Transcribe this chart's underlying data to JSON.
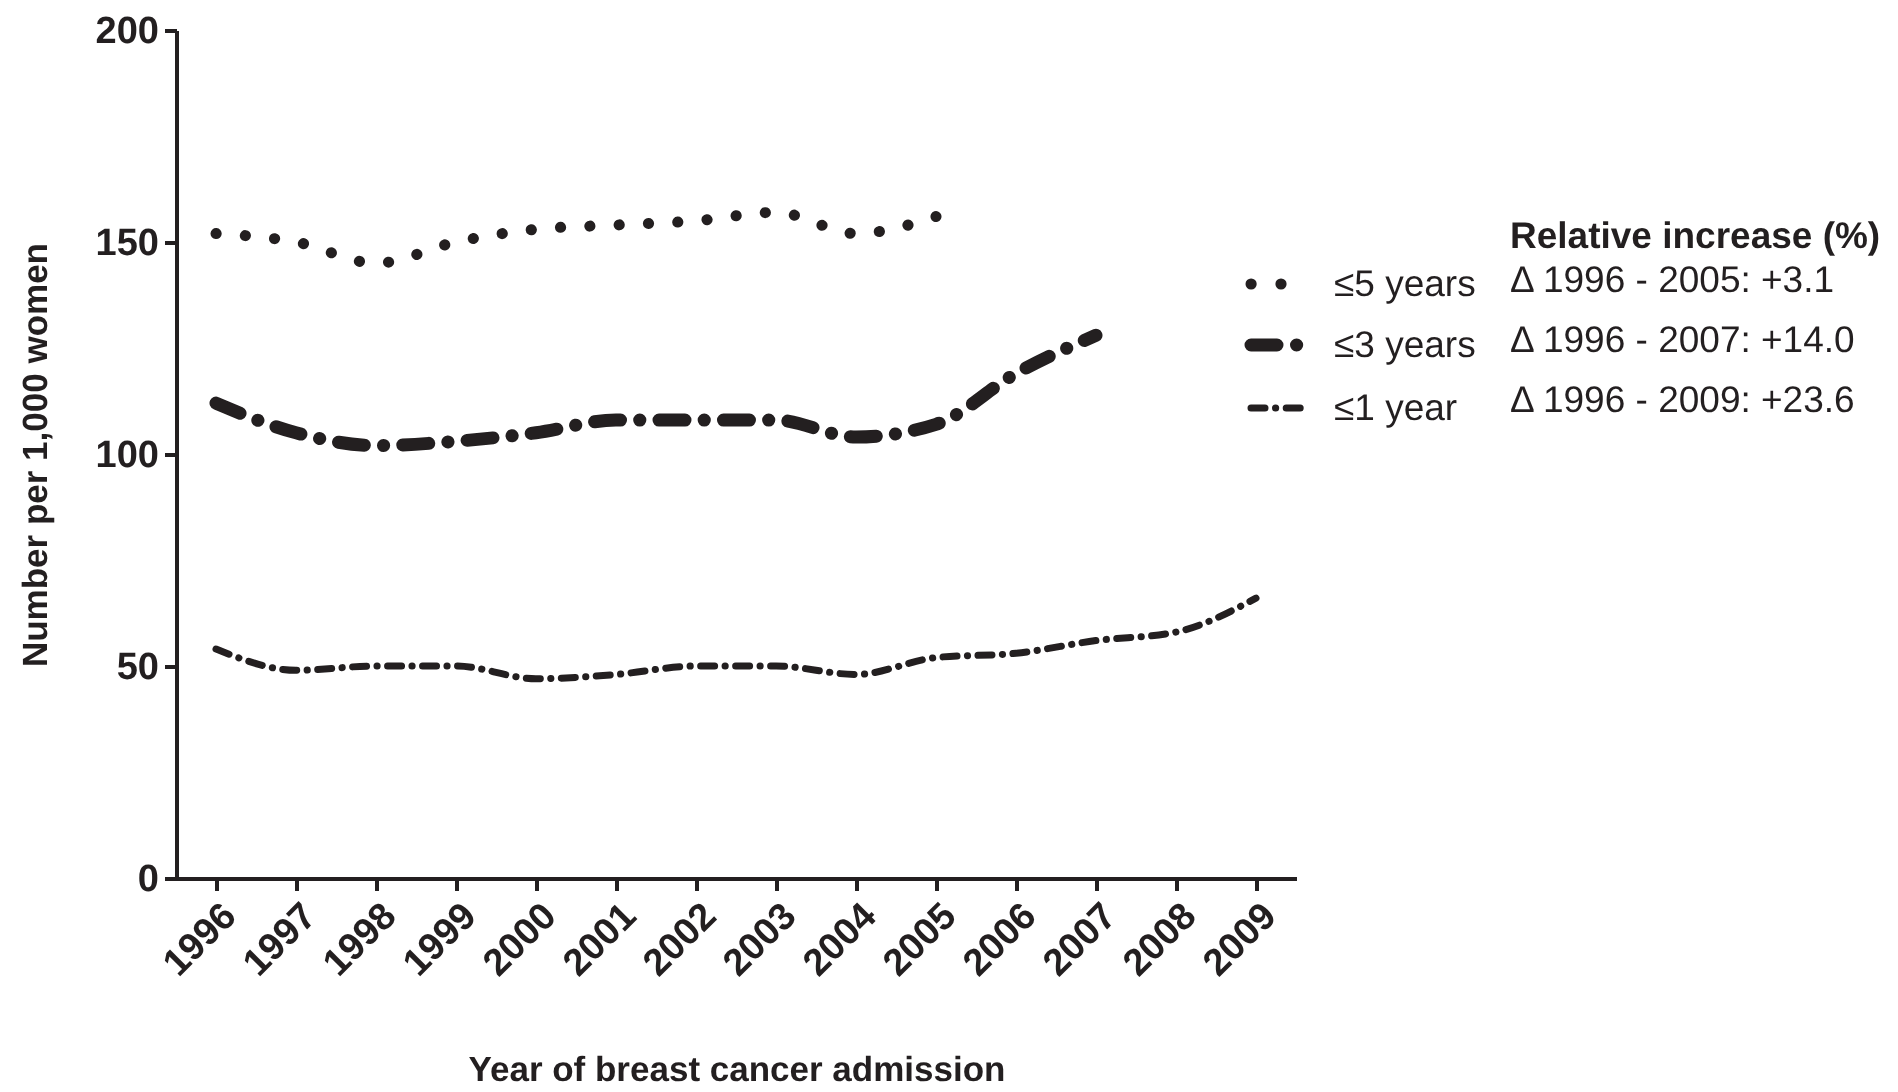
{
  "chart_data": {
    "type": "line",
    "xlabel": "Year of breast cancer admission",
    "ylabel": "Number per 1,000 women",
    "legend_title": "Relative increase (%)",
    "x": [
      1996,
      1997,
      1998,
      1999,
      2000,
      2001,
      2002,
      2003,
      2004,
      2005,
      2006,
      2007,
      2008,
      2009
    ],
    "xlim": [
      1995.5,
      2009.5
    ],
    "xticks": [
      1996,
      1997,
      1998,
      1999,
      2000,
      2001,
      2002,
      2003,
      2004,
      2005,
      2006,
      2007,
      2008,
      2009
    ],
    "ylim": [
      0,
      200
    ],
    "yticks": [
      0,
      50,
      100,
      150,
      200
    ],
    "legend": "top right",
    "series": [
      {
        "name": "≤5 years",
        "color": "#231f20",
        "line_style": "dotted",
        "x": [
          1996,
          1997,
          1998,
          1999,
          2000,
          2001,
          2002,
          2003,
          2004,
          2005
        ],
        "values": [
          152,
          150,
          145,
          150,
          153,
          154,
          155,
          157,
          152,
          156
        ]
      },
      {
        "name": "≤3 years",
        "color": "#231f20",
        "line_style": "dashed",
        "x": [
          1996,
          1997,
          1998,
          1999,
          2000,
          2001,
          2002,
          2003,
          2004,
          2005,
          2006,
          2007
        ],
        "values": [
          112,
          105,
          102,
          103,
          105,
          108,
          108,
          108,
          104,
          107,
          119,
          128
        ]
      },
      {
        "name": "≤1 year",
        "color": "#231f20",
        "line_style": "dashed",
        "values": [
          54,
          49,
          50,
          50,
          47,
          48,
          50,
          50,
          48,
          52,
          53,
          56,
          58,
          66
        ]
      }
    ],
    "annotations": [
      "Δ 1996 - 2005: +3.1",
      "Δ 1996 - 2007: +14.0",
      "Δ 1996 - 2009: +23.6"
    ]
  }
}
